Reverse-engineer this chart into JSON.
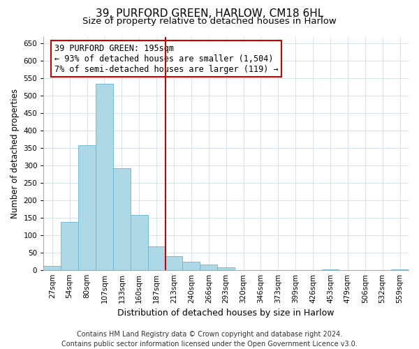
{
  "title": "39, PURFORD GREEN, HARLOW, CM18 6HL",
  "subtitle": "Size of property relative to detached houses in Harlow",
  "xlabel": "Distribution of detached houses by size in Harlow",
  "ylabel": "Number of detached properties",
  "bar_labels": [
    "27sqm",
    "54sqm",
    "80sqm",
    "107sqm",
    "133sqm",
    "160sqm",
    "187sqm",
    "213sqm",
    "240sqm",
    "266sqm",
    "293sqm",
    "320sqm",
    "346sqm",
    "373sqm",
    "399sqm",
    "426sqm",
    "453sqm",
    "479sqm",
    "506sqm",
    "532sqm",
    "559sqm"
  ],
  "bar_heights": [
    12,
    137,
    358,
    535,
    292,
    158,
    67,
    40,
    23,
    15,
    8,
    0,
    0,
    0,
    0,
    0,
    2,
    0,
    0,
    0,
    2
  ],
  "bar_color": "#add8e6",
  "bar_edge_color": "#6ab4d2",
  "vline_x_index": 7,
  "vline_color": "#cc0000",
  "annotation_line1": "39 PURFORD GREEN: 195sqm",
  "annotation_line2": "← 93% of detached houses are smaller (1,504)",
  "annotation_line3": "7% of semi-detached houses are larger (119) →",
  "annotation_box_edgecolor": "#cc0000",
  "annotation_fontsize": 8.5,
  "ylim": [
    0,
    670
  ],
  "yticks": [
    0,
    50,
    100,
    150,
    200,
    250,
    300,
    350,
    400,
    450,
    500,
    550,
    600,
    650
  ],
  "footer_line1": "Contains HM Land Registry data © Crown copyright and database right 2024.",
  "footer_line2": "Contains public sector information licensed under the Open Government Licence v3.0.",
  "title_fontsize": 11,
  "subtitle_fontsize": 9.5,
  "xlabel_fontsize": 9,
  "ylabel_fontsize": 8.5,
  "tick_fontsize": 7.5,
  "footer_fontsize": 7
}
